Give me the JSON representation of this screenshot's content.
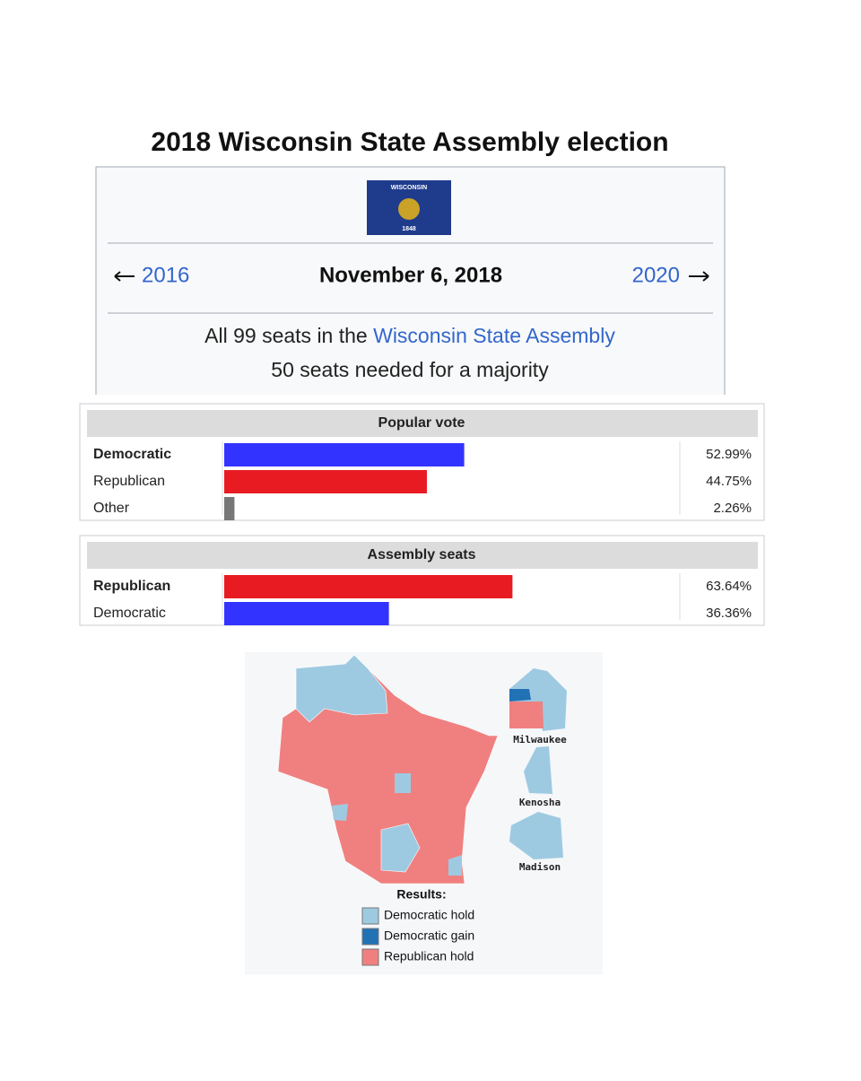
{
  "title": "2018 Wisconsin State Assembly election",
  "flag": {
    "name": "WISCONSIN",
    "year": "1848"
  },
  "nav": {
    "previous": "2016",
    "date": "November 6, 2018",
    "next": "2020"
  },
  "seats": {
    "prefix": "All 99 seats in the",
    "link": "Wisconsin State Assembly",
    "majority": "50 seats needed for a majority"
  },
  "popular_vote": {
    "title": "Popular vote",
    "xlim": [
      0,
      100
    ],
    "rows": [
      {
        "party": "Democratic",
        "value": 52.99,
        "label": "52.99%",
        "color": "#3333ff",
        "bold": true
      },
      {
        "party": "Republican",
        "value": 44.75,
        "label": "44.75%",
        "color": "#e81b23",
        "bold": false
      },
      {
        "party": "Other",
        "value": 2.26,
        "label": "2.26%",
        "color": "#777777",
        "bold": false
      }
    ]
  },
  "assembly_seats": {
    "title": "Assembly seats",
    "xlim": [
      0,
      100
    ],
    "rows": [
      {
        "party": "Republican",
        "value": 63.64,
        "label": "63.64%",
        "color": "#e81b23",
        "bold": true
      },
      {
        "party": "Democratic",
        "value": 36.36,
        "label": "36.36%",
        "color": "#3333ff",
        "bold": false
      }
    ]
  },
  "map": {
    "insets": [
      "Milwaukee",
      "Kenosha",
      "Madison"
    ],
    "legend_title": "Results:",
    "legend": [
      {
        "label": "Democratic hold",
        "color": "#9ecae1"
      },
      {
        "label": "Democratic gain",
        "color": "#2171b5"
      },
      {
        "label": "Republican hold",
        "color": "#f08080"
      }
    ]
  }
}
